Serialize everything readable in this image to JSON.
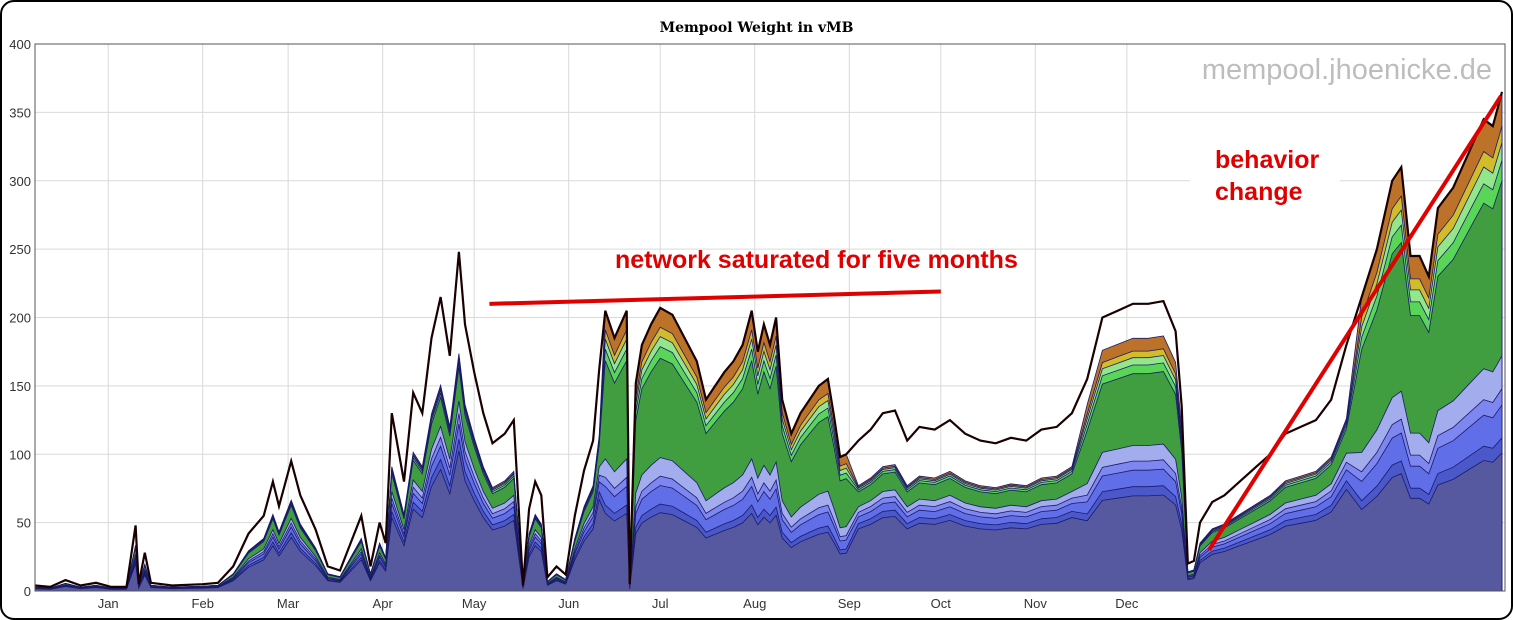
{
  "chart_data": {
    "type": "area",
    "title": "Mempool Weight in vMB",
    "xlabel": "",
    "ylabel": "",
    "ylim": [
      0,
      400
    ],
    "yticks": [
      0,
      50,
      100,
      150,
      200,
      250,
      300,
      350,
      400
    ],
    "xticks": [
      "Jan",
      "Feb",
      "Mar",
      "Apr",
      "May",
      "Jun",
      "Jul",
      "Aug",
      "Sep",
      "Oct",
      "Nov",
      "Dec"
    ],
    "grid": true,
    "watermark": "mempool.jhoenicke.de",
    "stacked": true,
    "layer_colors": [
      "#565a9c",
      "#4a56c8",
      "#5f6ee6",
      "#7c84ef",
      "#a9adf5",
      "#3f9a3f",
      "#55d555",
      "#8fe98f",
      "#d4c02a",
      "#b86a1e"
    ],
    "total": [
      [
        0,
        4
      ],
      [
        5,
        3
      ],
      [
        10,
        8
      ],
      [
        15,
        4
      ],
      [
        20,
        6
      ],
      [
        25,
        3
      ],
      [
        30,
        3
      ],
      [
        33,
        48
      ],
      [
        34,
        5
      ],
      [
        36,
        28
      ],
      [
        38,
        6
      ],
      [
        45,
        4
      ],
      [
        55,
        5
      ],
      [
        60,
        6
      ],
      [
        65,
        18
      ],
      [
        70,
        42
      ],
      [
        75,
        55
      ],
      [
        78,
        80
      ],
      [
        80,
        62
      ],
      [
        84,
        95
      ],
      [
        87,
        70
      ],
      [
        92,
        45
      ],
      [
        96,
        18
      ],
      [
        100,
        15
      ],
      [
        104,
        38
      ],
      [
        107,
        55
      ],
      [
        110,
        18
      ],
      [
        113,
        50
      ],
      [
        115,
        35
      ],
      [
        117,
        130
      ],
      [
        121,
        80
      ],
      [
        124,
        145
      ],
      [
        127,
        130
      ],
      [
        130,
        185
      ],
      [
        133,
        215
      ],
      [
        136,
        172
      ],
      [
        139,
        248
      ],
      [
        141,
        195
      ],
      [
        144,
        160
      ],
      [
        147,
        130
      ],
      [
        150,
        108
      ],
      [
        154,
        115
      ],
      [
        157,
        125
      ],
      [
        160,
        4
      ],
      [
        162,
        60
      ],
      [
        164,
        80
      ],
      [
        166,
        70
      ],
      [
        168,
        10
      ],
      [
        171,
        18
      ],
      [
        174,
        12
      ],
      [
        177,
        55
      ],
      [
        180,
        88
      ],
      [
        183,
        110
      ],
      [
        185,
        162
      ],
      [
        187,
        205
      ],
      [
        190,
        185
      ],
      [
        192,
        195
      ],
      [
        194,
        205
      ],
      [
        195,
        5
      ],
      [
        197,
        152
      ],
      [
        199,
        180
      ],
      [
        202,
        195
      ],
      [
        205,
        207
      ],
      [
        209,
        202
      ],
      [
        213,
        185
      ],
      [
        217,
        168
      ],
      [
        220,
        140
      ],
      [
        223,
        150
      ],
      [
        226,
        160
      ],
      [
        229,
        168
      ],
      [
        232,
        180
      ],
      [
        235,
        205
      ],
      [
        237,
        175
      ],
      [
        239,
        195
      ],
      [
        241,
        180
      ],
      [
        243,
        200
      ],
      [
        245,
        140
      ],
      [
        248,
        115
      ],
      [
        251,
        130
      ],
      [
        254,
        140
      ],
      [
        257,
        150
      ],
      [
        260,
        155
      ],
      [
        262,
        128
      ],
      [
        264,
        98
      ],
      [
        266,
        100
      ],
      [
        270,
        110
      ],
      [
        274,
        118
      ],
      [
        278,
        130
      ],
      [
        282,
        132
      ],
      [
        286,
        110
      ],
      [
        290,
        120
      ],
      [
        295,
        118
      ],
      [
        300,
        125
      ],
      [
        305,
        115
      ],
      [
        310,
        110
      ],
      [
        315,
        108
      ],
      [
        320,
        112
      ],
      [
        325,
        110
      ],
      [
        330,
        118
      ],
      [
        335,
        120
      ],
      [
        340,
        130
      ],
      [
        345,
        155
      ],
      [
        350,
        200
      ],
      [
        355,
        205
      ],
      [
        360,
        210
      ],
      [
        365,
        210
      ],
      [
        370,
        212
      ],
      [
        374,
        190
      ],
      [
        376,
        135
      ],
      [
        378,
        20
      ],
      [
        380,
        22
      ],
      [
        382,
        50
      ],
      [
        386,
        65
      ],
      [
        390,
        70
      ],
      [
        395,
        80
      ],
      [
        400,
        90
      ],
      [
        405,
        100
      ],
      [
        410,
        115
      ],
      [
        415,
        120
      ],
      [
        420,
        125
      ],
      [
        425,
        140
      ],
      [
        430,
        180
      ],
      [
        435,
        215
      ],
      [
        440,
        250
      ],
      [
        445,
        300
      ],
      [
        448,
        310
      ],
      [
        451,
        245
      ],
      [
        454,
        245
      ],
      [
        457,
        230
      ],
      [
        460,
        280
      ],
      [
        465,
        295
      ],
      [
        470,
        320
      ],
      [
        475,
        345
      ],
      [
        478,
        340
      ],
      [
        481,
        365
      ]
    ],
    "series_end_values": [
      {
        "layer": 1,
        "value": 101
      },
      {
        "layer": 2,
        "value": 112
      },
      {
        "layer": 3,
        "value": 136
      },
      {
        "layer": 4,
        "value": 148
      },
      {
        "layer": 5,
        "value": 172
      },
      {
        "layer": 6,
        "value": 300
      },
      {
        "layer": 7,
        "value": 315
      },
      {
        "layer": 8,
        "value": 328
      },
      {
        "layer": 9,
        "value": 340
      },
      {
        "layer": 10,
        "value": 365
      }
    ],
    "annotations": [
      {
        "text": "network saturated for five months",
        "color": "#e00000",
        "from": [
          "May",
          210
        ],
        "to": [
          "Sep",
          219
        ]
      },
      {
        "text": "behavior",
        "color": "#e00000",
        "line2": "change",
        "from": [
          "Oct",
          30
        ],
        "to": [
          "Dec",
          362
        ]
      }
    ]
  },
  "x_domain_days": [
    0,
    482
  ]
}
